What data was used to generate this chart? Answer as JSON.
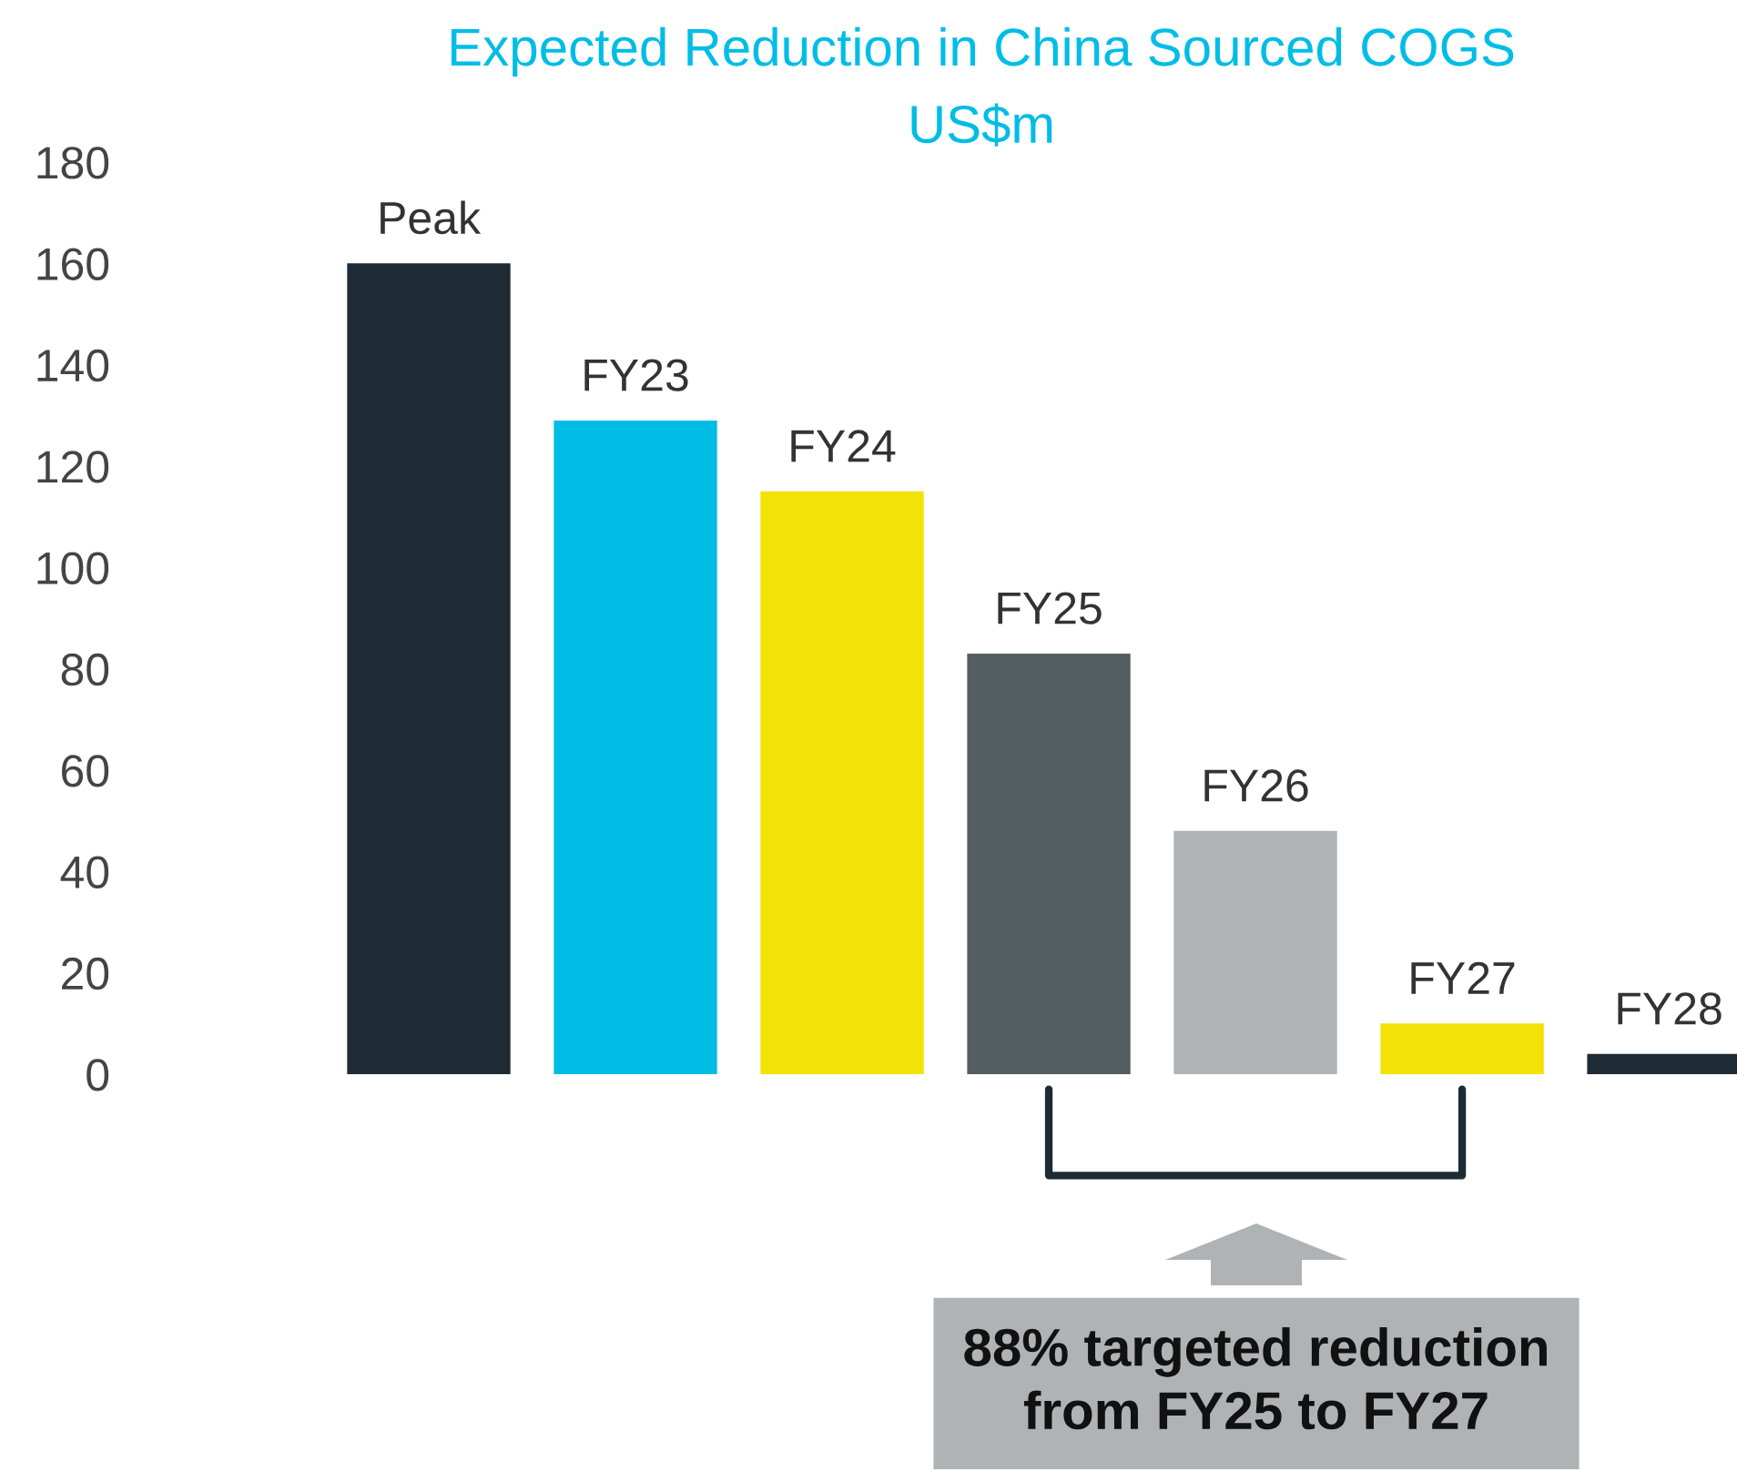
{
  "chart_data": {
    "type": "bar",
    "title": "Expected Reduction in China Sourced COGS",
    "subtitle": "US$m",
    "categories": [
      "Peak",
      "FY23",
      "FY24",
      "FY25",
      "FY26",
      "FY27",
      "FY28"
    ],
    "values": [
      160,
      129,
      115,
      83,
      48,
      10,
      4
    ],
    "colors": [
      "#1e2b35",
      "#00bde6",
      "#f2e205",
      "#555e60",
      "#b0b3b5",
      "#f2e205",
      "#1e2b35"
    ],
    "ylim": [
      0,
      180
    ],
    "yticks": [
      0,
      20,
      40,
      60,
      80,
      100,
      120,
      140,
      160,
      180
    ],
    "grid": false,
    "legend": false,
    "annotations": [
      "88% targeted reduction\nfrom FY25 to FY27"
    ]
  }
}
